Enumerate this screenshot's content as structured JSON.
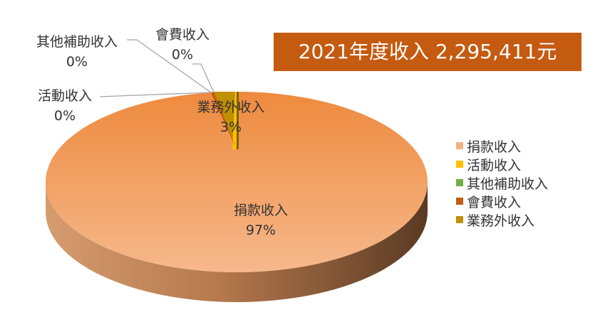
{
  "chart_data": {
    "type": "pie",
    "title": "2021年度收入 2,295,411元",
    "categories": [
      "捐款收入",
      "活動收入",
      "其他補助收入",
      "會費收入",
      "業務外收入"
    ],
    "values": [
      97,
      0,
      0,
      0,
      3
    ],
    "value_labels": [
      "97%",
      "0%",
      "0%",
      "0%",
      "3%"
    ],
    "colors": [
      "#f4b183",
      "#ffc000",
      "#70ad47",
      "#c55a11",
      "#bf9000"
    ],
    "legend_position": "right"
  }
}
